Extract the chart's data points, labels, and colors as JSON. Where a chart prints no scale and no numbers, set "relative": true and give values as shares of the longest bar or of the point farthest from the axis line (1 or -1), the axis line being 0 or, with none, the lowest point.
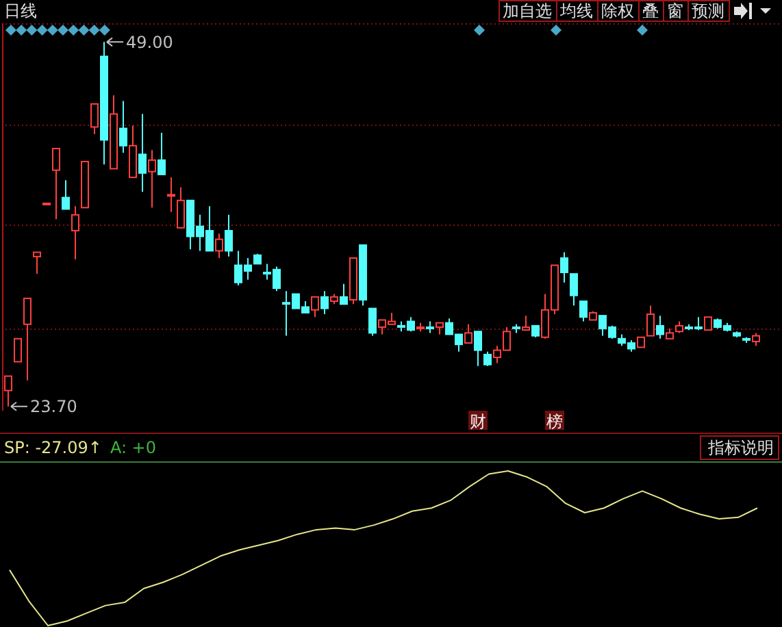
{
  "chart_data": [
    {
      "type": "candlestick",
      "title": "日线",
      "categories": [
        null,
        null,
        null,
        null,
        null,
        null,
        null,
        null,
        null,
        null,
        null,
        null,
        null,
        null,
        null,
        null,
        null,
        null,
        null,
        null,
        null,
        null,
        null,
        null,
        null,
        null,
        null,
        null,
        null,
        null,
        null,
        null,
        null,
        null,
        null,
        null,
        null,
        null,
        null,
        null,
        null,
        null,
        null,
        null,
        null,
        null,
        null,
        null,
        null,
        null,
        null,
        null,
        null,
        null,
        null,
        null,
        null,
        null,
        null,
        null,
        null,
        null,
        null,
        null,
        null,
        null,
        null,
        null,
        null,
        null,
        null,
        null,
        null,
        null,
        null,
        null,
        null,
        null,
        null
      ],
      "ohlc": [
        [
          24.8,
          25.8,
          23.7,
          25.8
        ],
        [
          26.8,
          28.4,
          26.8,
          28.4
        ],
        [
          29.4,
          31.2,
          25.5,
          31.2
        ],
        [
          34.1,
          34.4,
          32.9,
          34.4
        ],
        [
          37.8,
          37.8,
          37.8,
          37.8
        ],
        [
          40.1,
          41.6,
          36.7,
          41.6
        ],
        [
          38.2,
          39.4,
          37.4,
          37.4
        ],
        [
          35.9,
          37.6,
          33.9,
          37.0
        ],
        [
          37.5,
          40.7,
          37.5,
          40.7
        ],
        [
          43.1,
          44.7,
          42.6,
          44.7
        ],
        [
          48.0,
          49.0,
          40.5,
          42.2
        ],
        [
          40.2,
          45.3,
          40.2,
          44.0
        ],
        [
          43.0,
          44.9,
          41.3,
          41.8
        ],
        [
          39.6,
          43.2,
          39.6,
          41.8
        ],
        [
          41.2,
          44.0,
          38.6,
          39.9
        ],
        [
          40.0,
          41.5,
          37.5,
          40.8
        ],
        [
          40.8,
          42.7,
          39.8,
          39.8
        ],
        [
          38.4,
          39.6,
          37.2,
          38.4
        ],
        [
          36.1,
          38.9,
          36.1,
          38.0
        ],
        [
          38.0,
          38.0,
          34.6,
          35.5
        ],
        [
          36.2,
          37.0,
          34.5,
          35.5
        ],
        [
          35.9,
          37.6,
          34.5,
          34.5
        ],
        [
          34.5,
          35.7,
          34.0,
          35.3
        ],
        [
          35.9,
          37.0,
          34.1,
          34.5
        ],
        [
          33.5,
          34.5,
          32.1,
          32.3
        ],
        [
          33.5,
          34.0,
          32.5,
          33.1
        ],
        [
          34.2,
          34.3,
          33.6,
          33.6
        ],
        [
          33.0,
          33.6,
          32.5,
          33.0
        ],
        [
          33.2,
          33.4,
          31.7,
          31.9
        ],
        [
          30.9,
          31.7,
          28.6,
          30.9
        ],
        [
          31.5,
          31.5,
          30.5,
          30.5
        ],
        [
          30.6,
          31.0,
          30.2,
          30.2
        ],
        [
          30.4,
          31.3,
          29.9,
          31.3
        ],
        [
          31.3,
          31.7,
          30.1,
          30.5
        ],
        [
          31.0,
          31.5,
          30.8,
          31.3
        ],
        [
          31.3,
          32.2,
          30.8,
          30.8
        ],
        [
          31.1,
          34.0,
          30.8,
          34.0
        ],
        [
          34.9,
          34.9,
          30.7,
          31.1
        ],
        [
          30.5,
          30.5,
          28.6,
          28.8
        ],
        [
          29.2,
          29.7,
          28.7,
          29.7
        ],
        [
          29.4,
          30.2,
          29.4,
          29.6
        ],
        [
          29.3,
          29.6,
          28.9,
          29.3
        ],
        [
          29.6,
          29.9,
          28.9,
          29.0
        ],
        [
          29.2,
          29.5,
          28.9,
          29.2
        ],
        [
          29.2,
          29.6,
          28.8,
          29.2
        ],
        [
          29.2,
          29.5,
          28.7,
          29.5
        ],
        [
          29.5,
          29.8,
          28.7,
          28.7
        ],
        [
          28.7,
          28.7,
          27.5,
          28.0
        ],
        [
          28.1,
          29.4,
          28.1,
          28.8
        ],
        [
          28.9,
          28.9,
          26.5,
          27.6
        ],
        [
          27.3,
          27.5,
          26.5,
          26.6
        ],
        [
          27.1,
          27.9,
          26.7,
          27.6
        ],
        [
          27.6,
          29.2,
          27.6,
          28.9
        ],
        [
          29.2,
          29.4,
          28.8,
          29.2
        ],
        [
          29.0,
          30.0,
          29.0,
          29.2
        ],
        [
          29.3,
          29.3,
          28.5,
          28.6
        ],
        [
          28.5,
          31.5,
          28.4,
          30.4
        ],
        [
          30.4,
          33.5,
          30.1,
          33.5
        ],
        [
          34.0,
          34.4,
          32.3,
          33.0
        ],
        [
          32.9,
          32.9,
          30.7,
          31.4
        ],
        [
          31.0,
          31.0,
          29.6,
          29.9
        ],
        [
          29.7,
          30.3,
          29.7,
          30.2
        ],
        [
          30.0,
          30.0,
          28.6,
          29.1
        ],
        [
          29.2,
          29.3,
          28.4,
          28.5
        ],
        [
          28.4,
          28.7,
          27.9,
          28.1
        ],
        [
          28.1,
          28.3,
          27.5,
          27.7
        ],
        [
          27.8,
          28.5,
          27.8,
          28.5
        ],
        [
          28.6,
          30.7,
          28.6,
          30.1
        ],
        [
          29.3,
          30.0,
          28.4,
          28.7
        ],
        [
          28.4,
          29.1,
          28.4,
          28.8
        ],
        [
          28.9,
          29.6,
          28.8,
          29.3
        ],
        [
          29.2,
          29.4,
          29.0,
          29.2
        ],
        [
          29.2,
          29.9,
          29.0,
          29.2
        ],
        [
          29.0,
          29.9,
          29.0,
          29.9
        ],
        [
          29.7,
          29.8,
          29.1,
          29.2
        ],
        [
          29.3,
          29.5,
          28.9,
          29.0
        ],
        [
          28.8,
          28.9,
          28.5,
          28.6
        ],
        [
          28.4,
          28.5,
          28.1,
          28.4
        ],
        [
          28.2,
          28.8,
          27.9,
          28.6
        ]
      ],
      "colors": [
        "#ff4040",
        "#ff4040",
        "#ff4040",
        "#ff4040",
        "#ff4040",
        "#ff4040",
        "#54fcfc",
        "#ff4040",
        "#ff4040",
        "#ff4040",
        "#54fcfc",
        "#ff4040",
        "#54fcfc",
        "#ff4040",
        "#54fcfc",
        "#ff4040",
        "#54fcfc",
        "#ff4040",
        "#ff4040",
        "#54fcfc",
        "#54fcfc",
        "#54fcfc",
        "#ff4040",
        "#54fcfc",
        "#54fcfc",
        "#54fcfc",
        "#54fcfc",
        "#54fcfc",
        "#54fcfc",
        "#54fcfc",
        "#54fcfc",
        "#54fcfc",
        "#ff4040",
        "#54fcfc",
        "#ff4040",
        "#54fcfc",
        "#ff4040",
        "#54fcfc",
        "#54fcfc",
        "#ff4040",
        "#ff4040",
        "#54fcfc",
        "#54fcfc",
        "#ff4040",
        "#54fcfc",
        "#ff4040",
        "#54fcfc",
        "#54fcfc",
        "#ff4040",
        "#54fcfc",
        "#54fcfc",
        "#ff4040",
        "#ff4040",
        "#54fcfc",
        "#ff4040",
        "#54fcfc",
        "#ff4040",
        "#ff4040",
        "#54fcfc",
        "#54fcfc",
        "#54fcfc",
        "#ff4040",
        "#54fcfc",
        "#54fcfc",
        "#54fcfc",
        "#54fcfc",
        "#ff4040",
        "#ff4040",
        "#54fcfc",
        "#ff4040",
        "#ff4040",
        "#54fcfc",
        "#54fcfc",
        "#ff4040",
        "#54fcfc",
        "#54fcfc",
        "#54fcfc",
        "#54fcfc",
        "#ff4040"
      ],
      "ylim": [
        23.4,
        50.3
      ],
      "yticks": [
        {
          "value": 50.3,
          "label": null
        },
        {
          "value": 43.3,
          "label": null
        },
        {
          "value": 36.3,
          "label": null
        },
        {
          "value": 29.1,
          "label": null
        }
      ],
      "grid": "y",
      "annotations": [
        "49.00",
        "23.70",
        "加自选",
        "均线",
        "除权",
        "叠",
        "窗",
        "预测",
        "财",
        "榜"
      ]
    },
    {
      "type": "line",
      "title": "SP: -27.09↑",
      "relative": true,
      "categories": [
        null,
        null,
        null,
        null,
        null,
        null,
        null,
        null,
        null,
        null,
        null,
        null,
        null,
        null,
        null,
        null,
        null,
        null,
        null,
        null,
        null,
        null,
        null,
        null,
        null,
        null,
        null,
        null,
        null,
        null,
        null,
        null,
        null,
        null,
        null,
        null,
        null,
        null,
        null,
        null
      ],
      "series": [
        {
          "color": "#e6e68c",
          "values": [
            0.36,
            0.16,
            0.0,
            0.03,
            0.08,
            0.13,
            0.15,
            0.24,
            0.28,
            0.33,
            0.39,
            0.45,
            0.49,
            0.52,
            0.55,
            0.59,
            0.62,
            0.63,
            0.62,
            0.65,
            0.69,
            0.74,
            0.76,
            0.81,
            0.9,
            0.98,
            1.0,
            0.96,
            0.9,
            0.79,
            0.73,
            0.76,
            0.82,
            0.87,
            0.82,
            0.76,
            0.72,
            0.69,
            0.7,
            0.76
          ]
        }
      ],
      "annotations": [
        "A: +0",
        "指标说明"
      ]
    }
  ]
}
